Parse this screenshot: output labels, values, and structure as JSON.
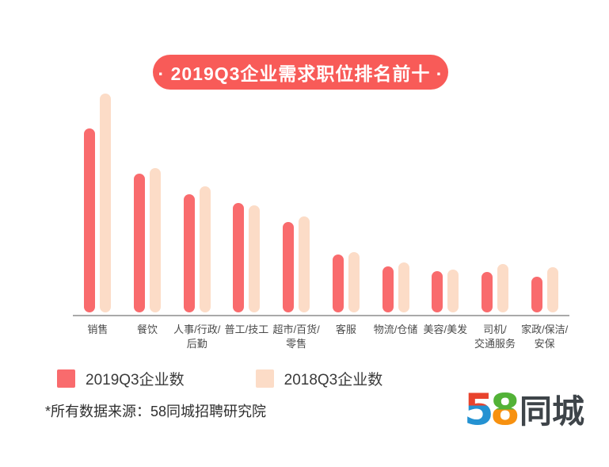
{
  "title": {
    "text": "· 2019Q3企业需求职位排名前十 ·",
    "bg_color": "#F85B58",
    "text_color": "#FFFFFF"
  },
  "chart_data": {
    "type": "bar",
    "title": "2019Q3企业需求职位排名前十",
    "categories": [
      [
        "销售"
      ],
      [
        "餐饮"
      ],
      [
        "人事/行政/",
        "后勤"
      ],
      [
        "普工/技工"
      ],
      [
        "超市/百货/",
        "零售"
      ],
      [
        "客服"
      ],
      [
        "物流/仓储"
      ],
      [
        "美容/美发"
      ],
      [
        "司机/",
        "交通服务"
      ],
      [
        "家政/保洁/",
        "安保"
      ]
    ],
    "series": [
      {
        "name": "2019Q3企业数",
        "color": "#F96B6D",
        "values": [
          84,
          63.5,
          54,
          50,
          41.5,
          26.5,
          21,
          19,
          18.5,
          16.5
        ]
      },
      {
        "name": "2018Q3企业数",
        "color": "#FCDCC7",
        "values": [
          100,
          66,
          57.5,
          49,
          44,
          27.5,
          23,
          19.5,
          22,
          20.5
        ]
      }
    ],
    "value_note": "relative index estimated from bar heights; source chart shows no numeric axis",
    "ylim": [
      0,
      100
    ],
    "grid": false,
    "legend_position": "bottom-left",
    "axis_line_color": "#A9A9A9"
  },
  "legend": {
    "items": [
      {
        "label": "2019Q3企业数",
        "color": "#F96B6D"
      },
      {
        "label": "2018Q3企业数",
        "color": "#FCDCC7"
      }
    ]
  },
  "footer": {
    "source_note": "*所有数据来源：58同城招聘研究院"
  },
  "logo": {
    "digit_five": "5",
    "digit_eight": "8",
    "text": "同城",
    "colors": {
      "five_top": "#E8432D",
      "five_bottom": "#2492D2",
      "eight_top": "#52B237",
      "eight_bottom": "#F79110",
      "text": "#3E4449"
    }
  }
}
